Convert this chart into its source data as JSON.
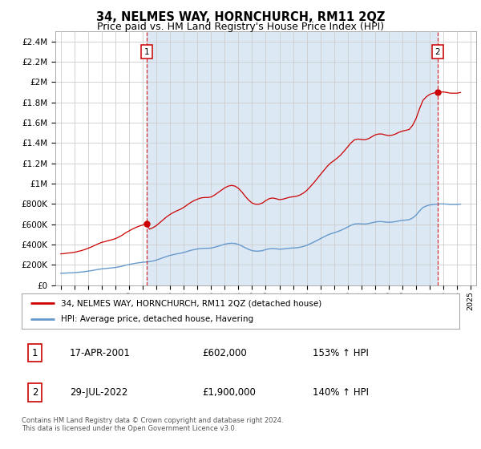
{
  "title": "34, NELMES WAY, HORNCHURCH, RM11 2QZ",
  "subtitle": "Price paid vs. HM Land Registry's House Price Index (HPI)",
  "title_fontsize": 10.5,
  "subtitle_fontsize": 9,
  "ylim": [
    0,
    2500000
  ],
  "yticks": [
    0,
    200000,
    400000,
    600000,
    800000,
    1000000,
    1200000,
    1400000,
    1600000,
    1800000,
    2000000,
    2200000,
    2400000
  ],
  "ytick_labels": [
    "£0",
    "£200K",
    "£400K",
    "£600K",
    "£800K",
    "£1M",
    "£1.2M",
    "£1.4M",
    "£1.6M",
    "£1.8M",
    "£2M",
    "£2.2M",
    "£2.4M"
  ],
  "xlim_start": 1994.6,
  "xlim_end": 2025.4,
  "xticks": [
    1995,
    1996,
    1997,
    1998,
    1999,
    2000,
    2001,
    2002,
    2003,
    2004,
    2005,
    2006,
    2007,
    2008,
    2009,
    2010,
    2011,
    2012,
    2013,
    2014,
    2015,
    2016,
    2017,
    2018,
    2019,
    2020,
    2021,
    2022,
    2023,
    2024,
    2025
  ],
  "sale1_x": 2001.29,
  "sale1_y": 602000,
  "sale2_x": 2022.57,
  "sale2_y": 1900000,
  "sale_color": "#cc0000",
  "hpi_color": "#6699cc",
  "shade_color": "#dde8f5",
  "grid_color": "#cccccc",
  "background_color": "#ffffff",
  "legend_line1": "34, NELMES WAY, HORNCHURCH, RM11 2QZ (detached house)",
  "legend_line2": "HPI: Average price, detached house, Havering",
  "table_row1_num": "1",
  "table_row1_date": "17-APR-2001",
  "table_row1_price": "£602,000",
  "table_row1_hpi": "153% ↑ HPI",
  "table_row2_num": "2",
  "table_row2_date": "29-JUL-2022",
  "table_row2_price": "£1,900,000",
  "table_row2_hpi": "140% ↑ HPI",
  "footer": "Contains HM Land Registry data © Crown copyright and database right 2024.\nThis data is licensed under the Open Government Licence v3.0.",
  "hpi_data_x": [
    1995.0,
    1995.25,
    1995.5,
    1995.75,
    1996.0,
    1996.25,
    1996.5,
    1996.75,
    1997.0,
    1997.25,
    1997.5,
    1997.75,
    1998.0,
    1998.25,
    1998.5,
    1998.75,
    1999.0,
    1999.25,
    1999.5,
    1999.75,
    2000.0,
    2000.25,
    2000.5,
    2000.75,
    2001.0,
    2001.25,
    2001.5,
    2001.75,
    2002.0,
    2002.25,
    2002.5,
    2002.75,
    2003.0,
    2003.25,
    2003.5,
    2003.75,
    2004.0,
    2004.25,
    2004.5,
    2004.75,
    2005.0,
    2005.25,
    2005.5,
    2005.75,
    2006.0,
    2006.25,
    2006.5,
    2006.75,
    2007.0,
    2007.25,
    2007.5,
    2007.75,
    2008.0,
    2008.25,
    2008.5,
    2008.75,
    2009.0,
    2009.25,
    2009.5,
    2009.75,
    2010.0,
    2010.25,
    2010.5,
    2010.75,
    2011.0,
    2011.25,
    2011.5,
    2011.75,
    2012.0,
    2012.25,
    2012.5,
    2012.75,
    2013.0,
    2013.25,
    2013.5,
    2013.75,
    2014.0,
    2014.25,
    2014.5,
    2014.75,
    2015.0,
    2015.25,
    2015.5,
    2015.75,
    2016.0,
    2016.25,
    2016.5,
    2016.75,
    2017.0,
    2017.25,
    2017.5,
    2017.75,
    2018.0,
    2018.25,
    2018.5,
    2018.75,
    2019.0,
    2019.25,
    2019.5,
    2019.75,
    2020.0,
    2020.25,
    2020.5,
    2020.75,
    2021.0,
    2021.25,
    2021.5,
    2021.75,
    2022.0,
    2022.25,
    2022.5,
    2022.75,
    2023.0,
    2023.25,
    2023.5,
    2023.75,
    2024.0,
    2024.25
  ],
  "hpi_data_y": [
    117000,
    118000,
    120000,
    121000,
    123000,
    126000,
    129000,
    133000,
    138000,
    143000,
    149000,
    155000,
    160000,
    163000,
    167000,
    170000,
    174000,
    180000,
    187000,
    196000,
    203000,
    210000,
    216000,
    221000,
    225000,
    228000,
    232000,
    238000,
    247000,
    259000,
    271000,
    283000,
    293000,
    301000,
    308000,
    314000,
    322000,
    332000,
    342000,
    350000,
    356000,
    361000,
    363000,
    363000,
    365000,
    373000,
    383000,
    393000,
    403000,
    410000,
    413000,
    410000,
    401000,
    386000,
    368000,
    352000,
    340000,
    335000,
    335000,
    340000,
    350000,
    358000,
    361000,
    358000,
    354000,
    356000,
    360000,
    364000,
    366000,
    368000,
    373000,
    381000,
    392000,
    407000,
    423000,
    440000,
    458000,
    475000,
    492000,
    506000,
    516000,
    527000,
    540000,
    556000,
    573000,
    590000,
    602000,
    605000,
    603000,
    602000,
    606000,
    614000,
    622000,
    626000,
    626000,
    622000,
    619000,
    621000,
    626000,
    633000,
    638000,
    641000,
    645000,
    662000,
    690000,
    730000,
    765000,
    780000,
    790000,
    795000,
    798000,
    800000,
    800000,
    798000,
    795000,
    795000,
    795000,
    798000
  ]
}
